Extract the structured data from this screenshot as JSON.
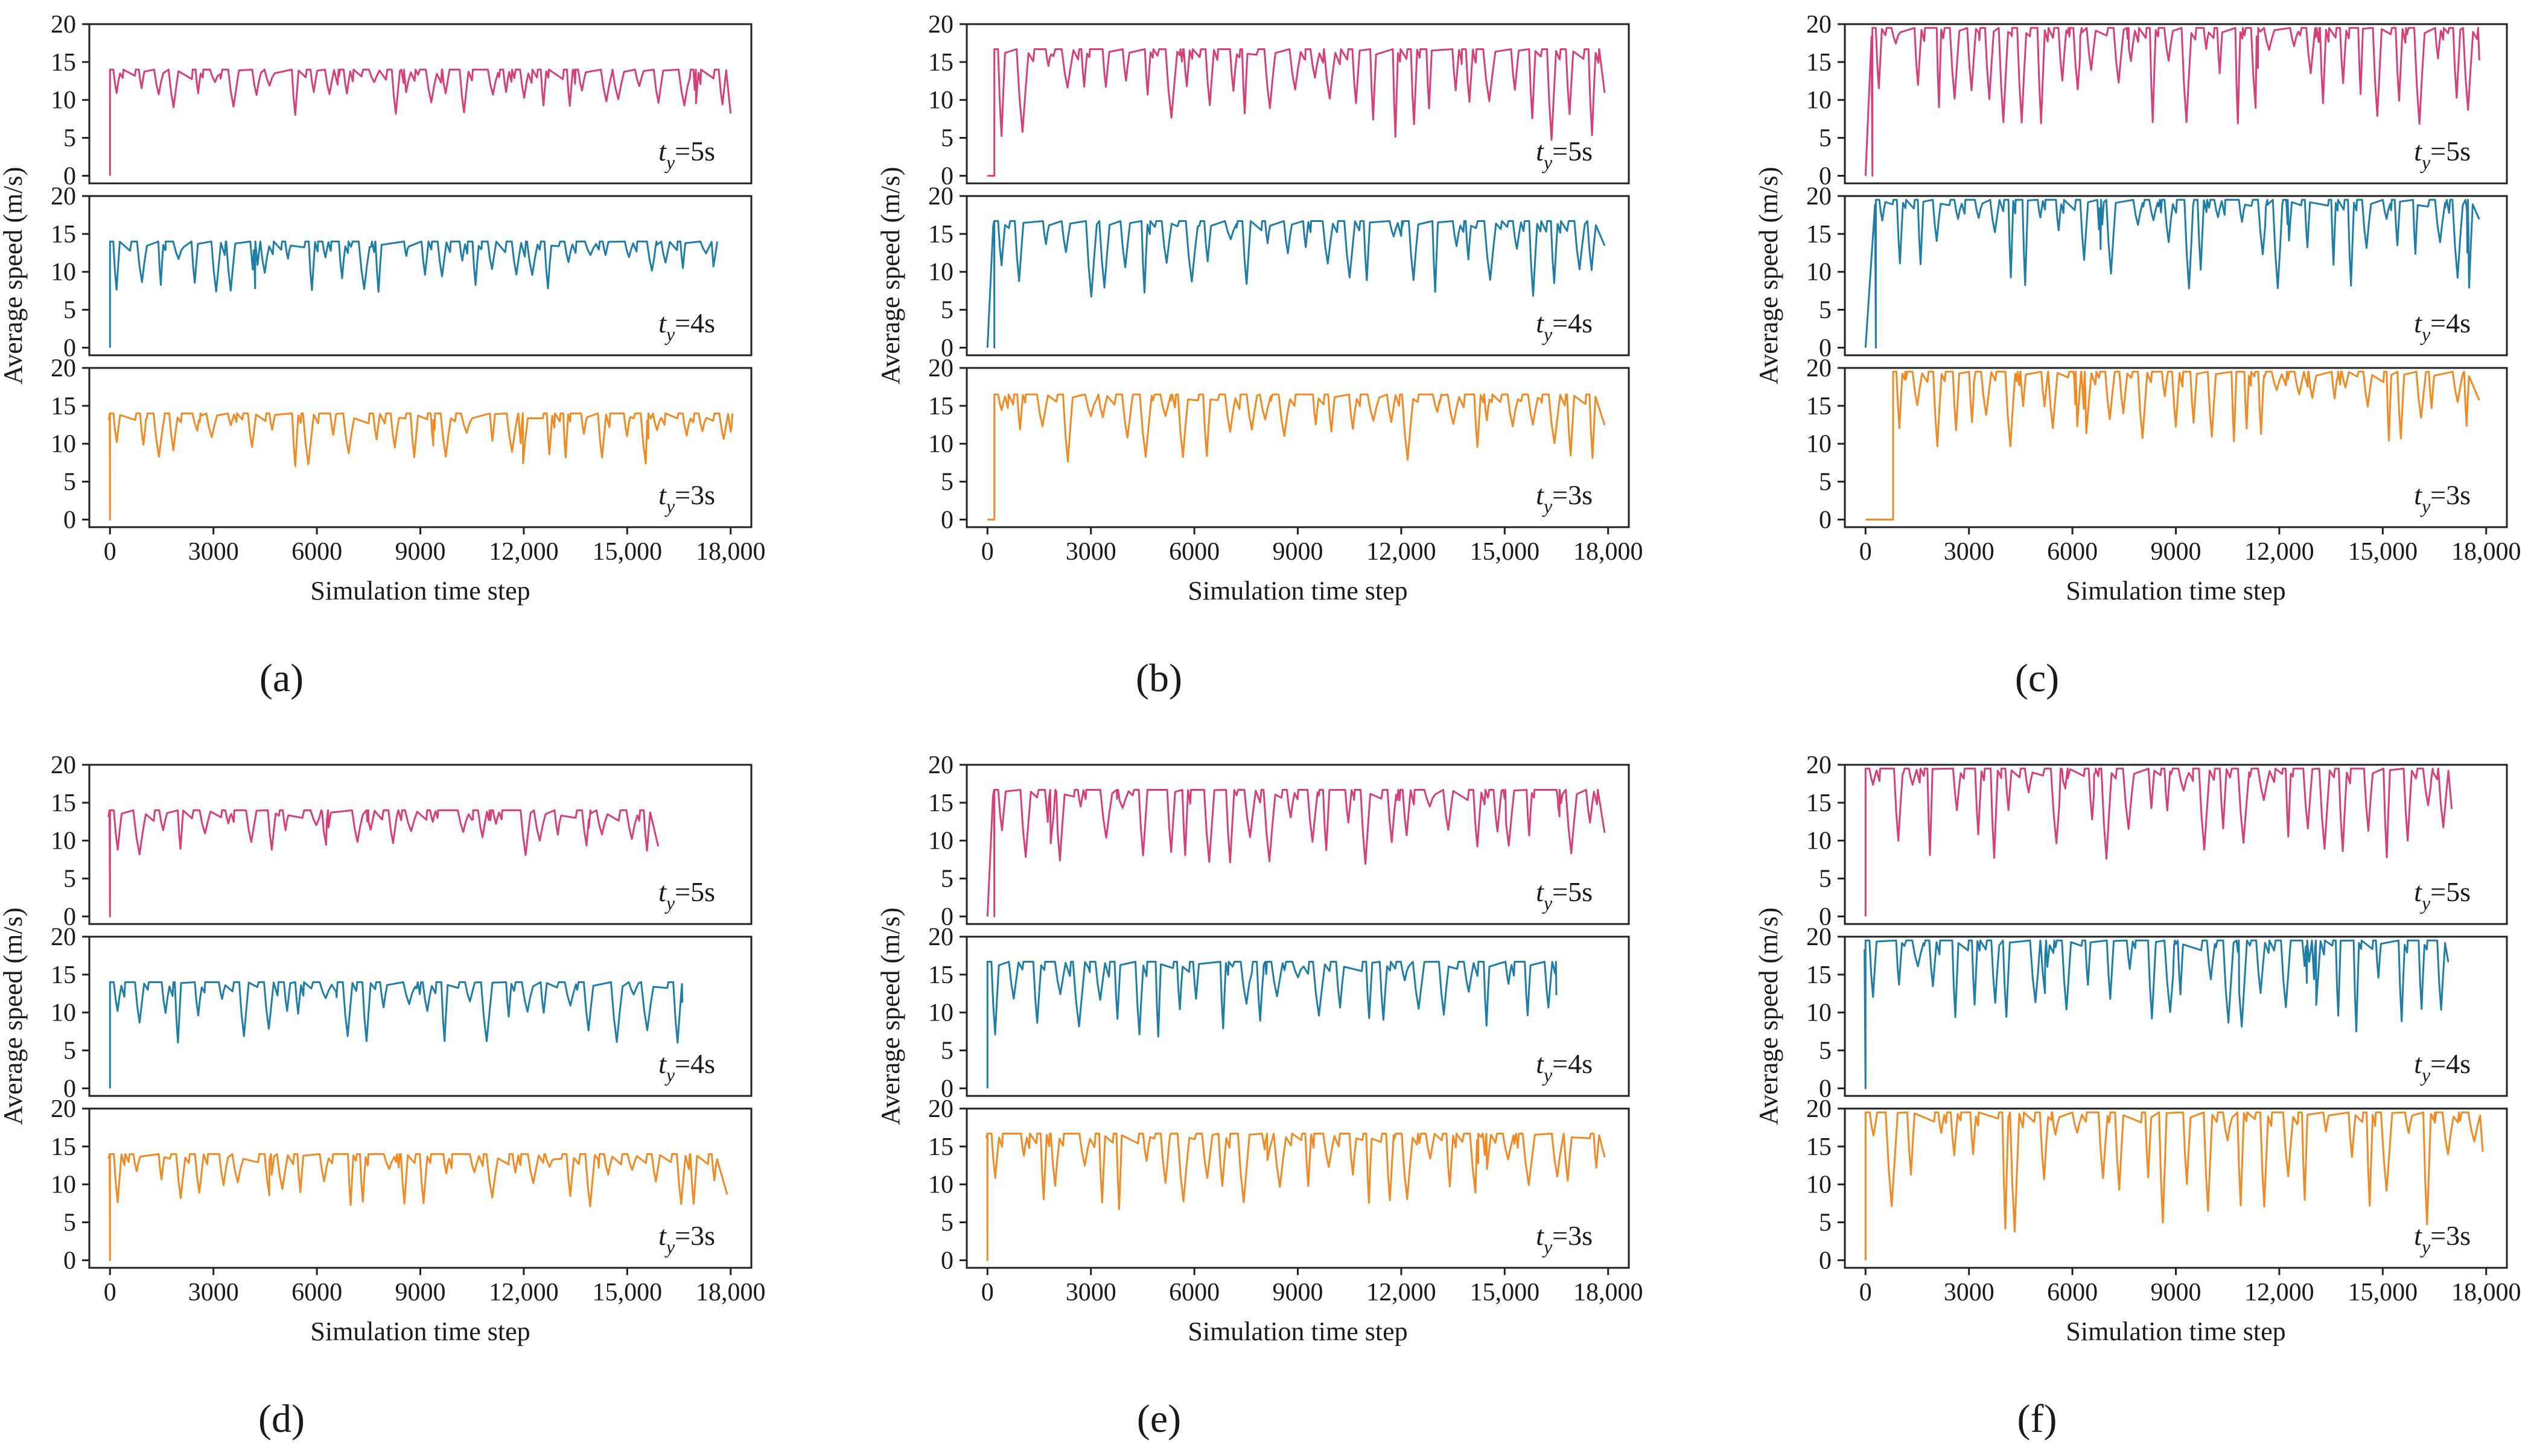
{
  "figure": {
    "colors": {
      "ty5": "#d6407a",
      "ty4": "#1f7ea8",
      "ty3": "#f08a24",
      "axis": "#222222"
    }
  },
  "chart_data": [
    {
      "type": "line",
      "caption": "(a)",
      "xlabel": "Simulation time step",
      "ylabel": "Average speed (m/s)",
      "xlim": [
        -600,
        18600
      ],
      "ylim": [
        -1,
        20
      ],
      "xticks": [
        0,
        3000,
        6000,
        9000,
        12000,
        15000,
        18000
      ],
      "xticklabels": [
        "0",
        "3000",
        "6000",
        "9000",
        "12,000",
        "15,000",
        "18,000"
      ],
      "yticks": [
        0,
        5,
        10,
        15,
        20
      ],
      "yticklabels": [
        "0",
        "5",
        "10",
        "15",
        "20"
      ],
      "panels": [
        {
          "name": "t_y=5s",
          "label_main": "t",
          "label_sub": "y",
          "label_suffix": "=5s",
          "color_key": "ty5",
          "start": 0,
          "base": 14,
          "end": 18000,
          "seed": 11,
          "dips": 32,
          "depth": [
            1.5,
            6
          ]
        },
        {
          "name": "t_y=4s",
          "label_main": "t",
          "label_sub": "y",
          "label_suffix": "=4s",
          "color_key": "ty4",
          "start": 0,
          "base": 14,
          "end": 17500,
          "seed": 22,
          "dips": 32,
          "depth": [
            1.5,
            7
          ]
        },
        {
          "name": "t_y=3s",
          "label_main": "t",
          "label_sub": "y",
          "label_suffix": "=3s",
          "color_key": "ty3",
          "start": 0,
          "base": 14,
          "end": 18000,
          "seed": 33,
          "dips": 32,
          "depth": [
            1.5,
            7
          ]
        }
      ]
    },
    {
      "type": "line",
      "caption": "(b)",
      "xlabel": "Simulation time step",
      "ylabel": "Average speed (m/s)",
      "xlim": [
        -600,
        18600
      ],
      "ylim": [
        -1,
        20
      ],
      "xticks": [
        0,
        3000,
        6000,
        9000,
        12000,
        15000,
        18000
      ],
      "xticklabels": [
        "0",
        "3000",
        "6000",
        "9000",
        "12,000",
        "15,000",
        "18,000"
      ],
      "yticks": [
        0,
        5,
        10,
        15,
        20
      ],
      "yticklabels": [
        "0",
        "5",
        "10",
        "15",
        "20"
      ],
      "panels": [
        {
          "name": "t_y=5s",
          "label_main": "t",
          "label_sub": "y",
          "label_suffix": "=5s",
          "color_key": "ty5",
          "start": 200,
          "base": 16.7,
          "end": 17900,
          "seed": 44,
          "dips": 30,
          "depth": [
            2,
            12
          ]
        },
        {
          "name": "t_y=4s",
          "label_main": "t",
          "label_sub": "y",
          "label_suffix": "=4s",
          "color_key": "ty4",
          "start": 200,
          "base": 16.7,
          "end": 17900,
          "seed": 55,
          "dips": 30,
          "depth": [
            2,
            10
          ]
        },
        {
          "name": "t_y=3s",
          "label_main": "t",
          "label_sub": "y",
          "label_suffix": "=3s",
          "color_key": "ty3",
          "start": 200,
          "base": 16.5,
          "end": 17900,
          "seed": 66,
          "dips": 30,
          "depth": [
            2,
            9
          ]
        }
      ]
    },
    {
      "type": "line",
      "caption": "(c)",
      "xlabel": "Simulation time step",
      "ylabel": "Average speed (m/s)",
      "xlim": [
        -600,
        18600
      ],
      "ylim": [
        -1,
        20
      ],
      "xticks": [
        0,
        3000,
        6000,
        9000,
        12000,
        15000,
        18000
      ],
      "xticklabels": [
        "0",
        "3000",
        "6000",
        "9000",
        "12,000",
        "15,000",
        "18,000"
      ],
      "yticks": [
        0,
        5,
        10,
        15,
        20
      ],
      "yticklabels": [
        "0",
        "5",
        "10",
        "15",
        "20"
      ],
      "panels": [
        {
          "name": "t_y=5s",
          "label_main": "t",
          "label_sub": "y",
          "label_suffix": "=5s",
          "color_key": "ty5",
          "start": 200,
          "base": 19.5,
          "end": 17800,
          "seed": 77,
          "dips": 34,
          "depth": [
            2,
            13
          ]
        },
        {
          "name": "t_y=4s",
          "label_main": "t",
          "label_sub": "y",
          "label_suffix": "=4s",
          "color_key": "ty4",
          "start": 300,
          "base": 19.5,
          "end": 17800,
          "seed": 88,
          "dips": 34,
          "depth": [
            2,
            12
          ]
        },
        {
          "name": "t_y=3s",
          "label_main": "t",
          "label_sub": "y",
          "label_suffix": "=3s",
          "color_key": "ty3",
          "start": 800,
          "base": 19.5,
          "end": 17800,
          "seed": 99,
          "dips": 34,
          "depth": [
            2,
            11
          ]
        }
      ]
    },
    {
      "type": "line",
      "caption": "(d)",
      "xlabel": "Simulation time step",
      "ylabel": "Average speed (m/s)",
      "xlim": [
        -600,
        18600
      ],
      "ylim": [
        -1,
        20
      ],
      "xticks": [
        0,
        3000,
        6000,
        9000,
        12000,
        15000,
        18000
      ],
      "xticklabels": [
        "0",
        "3000",
        "6000",
        "9000",
        "12,000",
        "15,000",
        "18,000"
      ],
      "yticks": [
        0,
        5,
        10,
        15,
        20
      ],
      "yticklabels": [
        "0",
        "5",
        "10",
        "15",
        "20"
      ],
      "panels": [
        {
          "name": "t_y=5s",
          "label_main": "t",
          "label_sub": "y",
          "label_suffix": "=5s",
          "color_key": "ty5",
          "start": 0,
          "base": 14,
          "end": 15900,
          "seed": 111,
          "dips": 26,
          "depth": [
            1.5,
            6
          ]
        },
        {
          "name": "t_y=4s",
          "label_main": "t",
          "label_sub": "y",
          "label_suffix": "=4s",
          "color_key": "ty4",
          "start": 0,
          "base": 14,
          "end": 16600,
          "seed": 122,
          "dips": 28,
          "depth": [
            1.5,
            8
          ]
        },
        {
          "name": "t_y=3s",
          "label_main": "t",
          "label_sub": "y",
          "label_suffix": "=3s",
          "color_key": "ty3",
          "start": 0,
          "base": 14,
          "end": 17900,
          "seed": 133,
          "dips": 30,
          "depth": [
            1.5,
            7
          ]
        }
      ]
    },
    {
      "type": "line",
      "caption": "(e)",
      "xlabel": "Simulation time step",
      "ylabel": "Average speed (m/s)",
      "xlim": [
        -600,
        18600
      ],
      "ylim": [
        -1,
        20
      ],
      "xticks": [
        0,
        3000,
        6000,
        9000,
        12000,
        15000,
        18000
      ],
      "xticklabels": [
        "0",
        "3000",
        "6000",
        "9000",
        "12,000",
        "15,000",
        "18,000"
      ],
      "yticks": [
        0,
        5,
        10,
        15,
        20
      ],
      "yticklabels": [
        "0",
        "5",
        "10",
        "15",
        "20"
      ],
      "panels": [
        {
          "name": "t_y=5s",
          "label_main": "t",
          "label_sub": "y",
          "label_suffix": "=5s",
          "color_key": "ty5",
          "start": 200,
          "base": 16.7,
          "end": 17900,
          "seed": 144,
          "dips": 30,
          "depth": [
            2,
            10
          ]
        },
        {
          "name": "t_y=4s",
          "label_main": "t",
          "label_sub": "y",
          "label_suffix": "=4s",
          "color_key": "ty4",
          "start": 0,
          "base": 16.7,
          "end": 16500,
          "seed": 155,
          "dips": 28,
          "depth": [
            2,
            10
          ]
        },
        {
          "name": "t_y=3s",
          "label_main": "t",
          "label_sub": "y",
          "label_suffix": "=3s",
          "color_key": "ty3",
          "start": 0,
          "base": 16.7,
          "end": 17900,
          "seed": 166,
          "dips": 30,
          "depth": [
            2,
            10
          ]
        }
      ]
    },
    {
      "type": "line",
      "caption": "(f)",
      "xlabel": "Simulation time step",
      "ylabel": "Average speed (m/s)",
      "xlim": [
        -600,
        18600
      ],
      "ylim": [
        -1,
        20
      ],
      "xticks": [
        0,
        3000,
        6000,
        9000,
        12000,
        15000,
        18000
      ],
      "xticklabels": [
        "0",
        "3000",
        "6000",
        "9000",
        "12,000",
        "15,000",
        "18,000"
      ],
      "yticks": [
        0,
        5,
        10,
        15,
        20
      ],
      "yticklabels": [
        "0",
        "5",
        "10",
        "15",
        "20"
      ],
      "panels": [
        {
          "name": "t_y=5s",
          "label_main": "t",
          "label_sub": "y",
          "label_suffix": "=5s",
          "color_key": "ty5",
          "start": 0,
          "base": 19.5,
          "end": 17000,
          "seed": 177,
          "dips": 30,
          "depth": [
            2,
            12
          ]
        },
        {
          "name": "t_y=4s",
          "label_main": "t",
          "label_sub": "y",
          "label_suffix": "=4s",
          "color_key": "ty4",
          "start": 0,
          "base": 19.5,
          "end": 16900,
          "seed": 188,
          "dips": 30,
          "depth": [
            2,
            12
          ]
        },
        {
          "name": "t_y=3s",
          "label_main": "t",
          "label_sub": "y",
          "label_suffix": "=3s",
          "color_key": "ty3",
          "start": 0,
          "base": 19.5,
          "end": 17900,
          "seed": 199,
          "dips": 30,
          "depth": [
            2,
            16
          ]
        }
      ]
    }
  ]
}
